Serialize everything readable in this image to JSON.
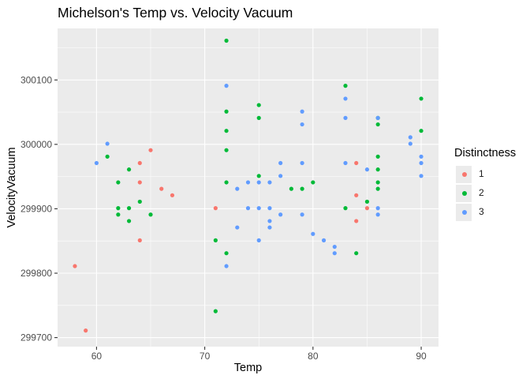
{
  "chart_data": {
    "type": "scatter",
    "title": "Michelson's Temp vs. Velocity Vacuum",
    "xlabel": "Temp",
    "ylabel": "VelocityVacuum",
    "xlim": [
      56.4,
      91.6
    ],
    "ylim": [
      299686,
      300180
    ],
    "x_ticks": [
      60,
      70,
      80,
      90
    ],
    "y_ticks": [
      299700,
      299800,
      299900,
      300000,
      300100
    ],
    "grid": true,
    "legend": {
      "title": "Distinctness",
      "position": "right"
    },
    "series": [
      {
        "name": "1",
        "color": "#F8766D",
        "points": [
          [
            58,
            299811
          ],
          [
            59,
            299711
          ],
          [
            64,
            299971
          ],
          [
            64,
            299941
          ],
          [
            64,
            299851
          ],
          [
            65,
            299991
          ],
          [
            66,
            299931
          ],
          [
            67,
            299921
          ],
          [
            71,
            299901
          ],
          [
            84,
            299971
          ],
          [
            84,
            299921
          ],
          [
            84,
            299881
          ],
          [
            85,
            299901
          ]
        ]
      },
      {
        "name": "2",
        "color": "#00BA38",
        "points": [
          [
            61,
            299981
          ],
          [
            62,
            299941
          ],
          [
            62,
            299901
          ],
          [
            62,
            299891
          ],
          [
            63,
            299961
          ],
          [
            63,
            299901
          ],
          [
            63,
            299881
          ],
          [
            64,
            299911
          ],
          [
            65,
            299891
          ],
          [
            71,
            299851
          ],
          [
            71,
            299741
          ],
          [
            72,
            300161
          ],
          [
            72,
            300051
          ],
          [
            72,
            300021
          ],
          [
            72,
            299991
          ],
          [
            72,
            299941
          ],
          [
            72,
            299831
          ],
          [
            75,
            300061
          ],
          [
            75,
            300041
          ],
          [
            75,
            299951
          ],
          [
            78,
            299931
          ],
          [
            79,
            299931
          ],
          [
            80,
            299941
          ],
          [
            83,
            300091
          ],
          [
            83,
            299901
          ],
          [
            84,
            299831
          ],
          [
            85,
            299911
          ],
          [
            86,
            300041
          ],
          [
            86,
            300031
          ],
          [
            86,
            299981
          ],
          [
            86,
            299961
          ],
          [
            86,
            299941
          ],
          [
            86,
            299931
          ],
          [
            90,
            300071
          ],
          [
            90,
            300021
          ]
        ]
      },
      {
        "name": "3",
        "color": "#619CFF",
        "points": [
          [
            60,
            299971
          ],
          [
            61,
            300001
          ],
          [
            72,
            300091
          ],
          [
            72,
            299811
          ],
          [
            73,
            299931
          ],
          [
            73,
            299871
          ],
          [
            74,
            299941
          ],
          [
            74,
            299901
          ],
          [
            75,
            299941
          ],
          [
            75,
            299901
          ],
          [
            75,
            299851
          ],
          [
            76,
            299941
          ],
          [
            76,
            299901
          ],
          [
            76,
            299881
          ],
          [
            76,
            299871
          ],
          [
            77,
            299971
          ],
          [
            77,
            299951
          ],
          [
            77,
            299891
          ],
          [
            79,
            300051
          ],
          [
            79,
            300031
          ],
          [
            79,
            299971
          ],
          [
            79,
            299891
          ],
          [
            80,
            299861
          ],
          [
            81,
            299851
          ],
          [
            82,
            299841
          ],
          [
            82,
            299831
          ],
          [
            83,
            300071
          ],
          [
            83,
            300041
          ],
          [
            83,
            299971
          ],
          [
            85,
            299961
          ],
          [
            86,
            300041
          ],
          [
            86,
            299901
          ],
          [
            86,
            299891
          ],
          [
            89,
            300011
          ],
          [
            89,
            300001
          ],
          [
            90,
            299981
          ],
          [
            90,
            299971
          ],
          [
            90,
            299951
          ]
        ]
      }
    ]
  }
}
